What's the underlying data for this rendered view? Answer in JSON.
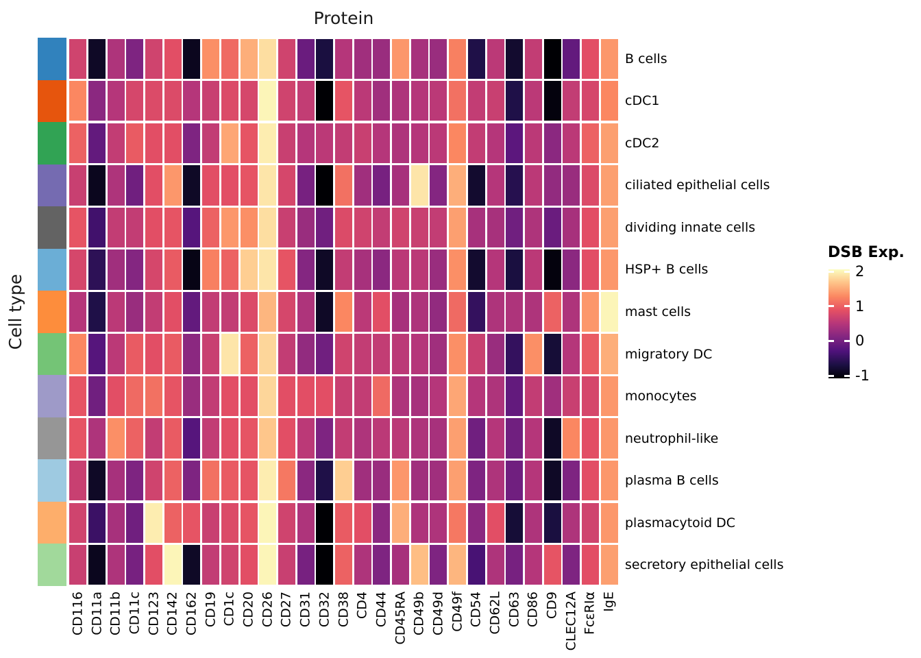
{
  "title": "Protein",
  "y_axis_label": "Cell type",
  "legend": {
    "title": "DSB Exp.",
    "ticks": [
      2,
      1,
      0,
      -1
    ],
    "min": -1,
    "max": 2
  },
  "colors": {
    "background": "#ffffff",
    "cell_gap": "#ffffff",
    "text": "#000000",
    "title_text": "#1a1a1a",
    "magma_stops": [
      "#000004",
      "#1c1044",
      "#4f127b",
      "#812581",
      "#b5367a",
      "#e55064",
      "#fb8761",
      "#fec287",
      "#fcfdbf"
    ]
  },
  "chart_data": {
    "type": "heatmap",
    "title": "Protein",
    "xlabel": "Protein",
    "ylabel": "Cell type",
    "value_label": "DSB Exp.",
    "value_range": [
      -1,
      2
    ],
    "colormap": "magma",
    "x_categories": [
      "CD116",
      "CD11a",
      "CD11b",
      "CD11c",
      "CD123",
      "CD142",
      "CD162",
      "CD19",
      "CD1c",
      "CD20",
      "CD26",
      "CD27",
      "CD31",
      "CD32",
      "CD38",
      "CD4",
      "CD44",
      "CD45RA",
      "CD49b",
      "CD49d",
      "CD49f",
      "CD54",
      "CD62L",
      "CD63",
      "CD86",
      "CD9",
      "CLEC12A",
      "FcεRIα",
      "IgE"
    ],
    "y_categories": [
      "B cells",
      "cDC1",
      "cDC2",
      "ciliated epithelial cells",
      "dividing innate cells",
      "HSP+ B cells",
      "mast cells",
      "migratory DC",
      "monocytes",
      "neutrophil-like",
      "plasma B cells",
      "plasmacytoid DC",
      "secretory epithelial cells"
    ],
    "row_annotation_colors": [
      "#3182bd",
      "#e6550d",
      "#31a354",
      "#756bb1",
      "#636363",
      "#6baed6",
      "#fd8d3c",
      "#74c476",
      "#9e9ac8",
      "#969696",
      "#9ecae1",
      "#fdae6b",
      "#a1d99b"
    ],
    "values": [
      [
        0.7,
        -0.8,
        0.45,
        0.1,
        0.7,
        0.85,
        -0.85,
        1.3,
        1.05,
        1.5,
        1.8,
        0.7,
        -0.05,
        -0.65,
        0.5,
        0.35,
        0.3,
        1.35,
        0.4,
        0.3,
        1.2,
        -0.6,
        0.55,
        -0.75,
        0.6,
        -1.0,
        -0.1,
        0.85,
        1.35
      ],
      [
        1.25,
        0.2,
        0.5,
        0.75,
        0.8,
        0.8,
        0.5,
        0.65,
        0.8,
        0.75,
        1.95,
        0.7,
        0.6,
        -1.0,
        0.9,
        0.55,
        0.35,
        0.45,
        0.5,
        0.55,
        1.1,
        0.6,
        0.65,
        -0.6,
        0.55,
        -0.95,
        0.6,
        0.75,
        1.25
      ],
      [
        1.0,
        -0.1,
        0.6,
        0.95,
        0.85,
        0.85,
        0.1,
        0.6,
        1.45,
        0.9,
        1.9,
        0.65,
        0.5,
        0.55,
        0.6,
        0.65,
        0.5,
        0.45,
        0.5,
        0.55,
        1.25,
        0.6,
        0.5,
        -0.15,
        0.55,
        0.2,
        0.55,
        1.0,
        1.4
      ],
      [
        0.65,
        -0.85,
        0.45,
        0.0,
        0.85,
        1.35,
        -0.8,
        0.85,
        0.85,
        0.9,
        1.85,
        0.75,
        0.05,
        -1.0,
        1.1,
        0.35,
        0.05,
        0.4,
        1.85,
        0.15,
        1.5,
        -0.75,
        0.5,
        -0.55,
        0.55,
        0.25,
        0.3,
        0.8,
        1.4
      ],
      [
        0.9,
        -0.35,
        0.6,
        0.6,
        0.85,
        0.9,
        -0.2,
        1.0,
        1.35,
        1.3,
        1.8,
        0.65,
        0.3,
        0.0,
        0.8,
        0.7,
        0.6,
        0.7,
        0.65,
        0.6,
        1.4,
        0.4,
        0.4,
        0.0,
        0.45,
        -0.05,
        0.4,
        0.85,
        1.4
      ],
      [
        0.75,
        -0.5,
        0.35,
        0.15,
        0.75,
        0.95,
        -0.9,
        1.2,
        1.0,
        1.7,
        1.85,
        0.9,
        0.15,
        -0.8,
        0.6,
        0.4,
        0.2,
        0.55,
        0.55,
        0.3,
        1.3,
        -0.75,
        0.5,
        -0.65,
        0.55,
        -0.95,
        0.2,
        0.85,
        1.35
      ],
      [
        0.5,
        -0.6,
        0.55,
        0.3,
        0.6,
        0.85,
        -0.1,
        0.6,
        0.6,
        0.8,
        1.55,
        0.75,
        0.45,
        -0.8,
        1.25,
        0.55,
        0.85,
        0.4,
        0.45,
        0.25,
        1.05,
        -0.45,
        0.45,
        0.45,
        0.45,
        1.0,
        0.45,
        1.35,
        1.95
      ],
      [
        1.25,
        -0.2,
        0.55,
        0.95,
        0.85,
        0.95,
        0.2,
        0.65,
        1.85,
        1.0,
        1.75,
        0.6,
        0.25,
        0.0,
        0.7,
        0.6,
        0.6,
        0.55,
        0.5,
        0.35,
        1.3,
        0.65,
        0.3,
        -0.45,
        1.3,
        -0.7,
        0.5,
        0.95,
        1.5
      ],
      [
        0.9,
        0.0,
        0.85,
        1.05,
        1.1,
        0.9,
        0.3,
        0.6,
        0.85,
        0.85,
        1.75,
        0.85,
        0.85,
        0.85,
        0.65,
        0.6,
        1.05,
        0.45,
        0.4,
        0.5,
        1.45,
        0.5,
        0.45,
        -0.1,
        0.6,
        0.35,
        0.65,
        0.75,
        1.35
      ],
      [
        0.9,
        0.45,
        1.3,
        1.0,
        0.6,
        0.95,
        -0.2,
        0.6,
        0.85,
        0.9,
        1.65,
        0.85,
        0.55,
        0.1,
        0.6,
        0.45,
        0.55,
        0.55,
        0.45,
        0.4,
        1.4,
        0.0,
        0.5,
        0.0,
        0.5,
        -0.8,
        1.25,
        0.85,
        1.35
      ],
      [
        0.65,
        -0.8,
        0.4,
        0.1,
        0.7,
        1.0,
        0.1,
        1.1,
        0.95,
        0.9,
        1.9,
        1.15,
        0.2,
        -0.6,
        1.7,
        0.35,
        0.3,
        1.35,
        0.35,
        0.35,
        1.4,
        0.1,
        0.45,
        0.0,
        0.5,
        -0.8,
        0.1,
        0.85,
        1.35
      ],
      [
        0.7,
        -0.4,
        0.4,
        0.0,
        1.9,
        1.0,
        0.9,
        0.65,
        0.8,
        0.9,
        1.95,
        0.7,
        0.45,
        -1.0,
        0.95,
        0.85,
        0.2,
        1.5,
        0.45,
        0.45,
        1.15,
        0.2,
        0.85,
        -0.7,
        0.45,
        -0.65,
        0.45,
        0.7,
        1.35
      ],
      [
        0.65,
        -0.85,
        0.45,
        0.05,
        0.85,
        1.95,
        -0.8,
        0.6,
        0.7,
        0.85,
        1.95,
        0.65,
        0.05,
        -1.0,
        1.0,
        0.45,
        0.1,
        0.4,
        1.6,
        0.1,
        1.55,
        -0.3,
        0.45,
        0.05,
        0.5,
        0.9,
        0.1,
        0.85,
        1.4
      ]
    ]
  }
}
